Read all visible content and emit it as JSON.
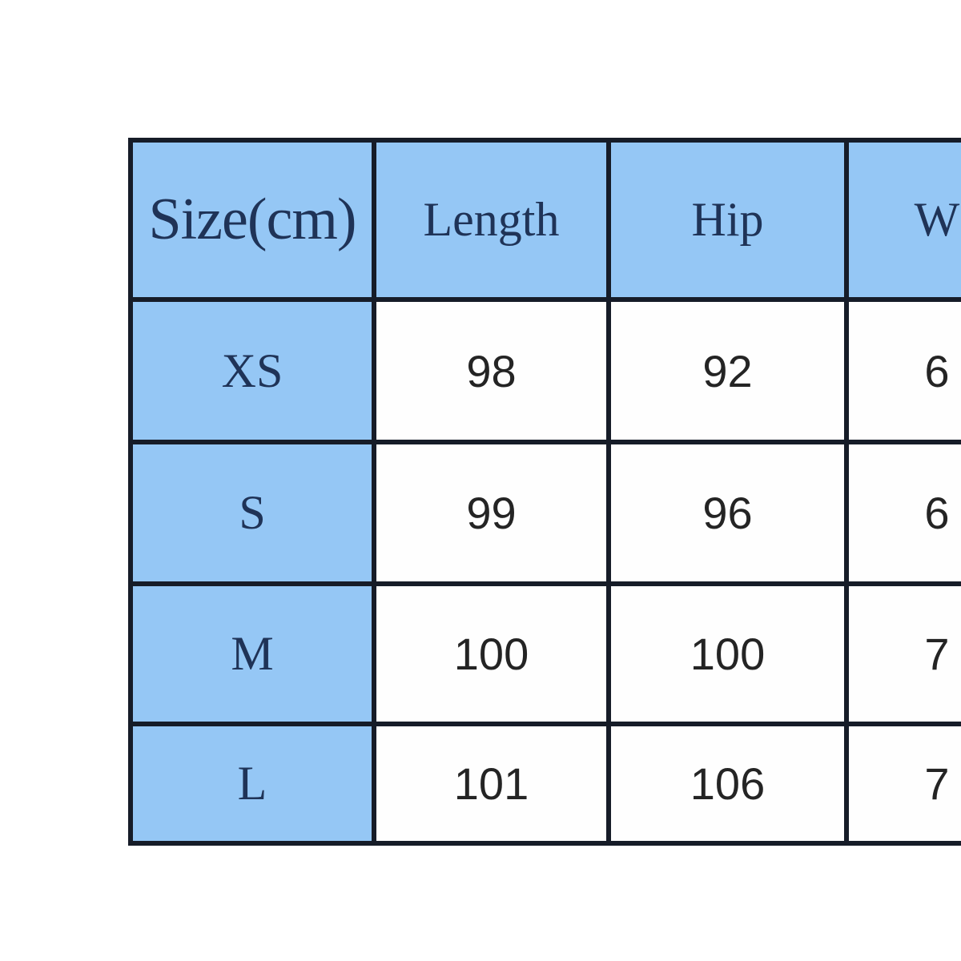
{
  "colors": {
    "cell_blue": "#95C7F5",
    "grid_line": "#161C28",
    "label_text": "#1F3357",
    "value_text": "#242424",
    "background": "#FFFFFF"
  },
  "chart_data": {
    "type": "table",
    "title": "Size(cm)",
    "columns": [
      "Size(cm)",
      "Length",
      "Hip",
      "W"
    ],
    "truncated_right": true,
    "rows": [
      {
        "size": "XS",
        "length": "98",
        "hip": "92",
        "w_partial": "6"
      },
      {
        "size": "S",
        "length": "99",
        "hip": "96",
        "w_partial": "6"
      },
      {
        "size": "M",
        "length": "100",
        "hip": "100",
        "w_partial": "7"
      },
      {
        "size": "L",
        "length": "101",
        "hip": "106",
        "w_partial": "7"
      }
    ]
  }
}
